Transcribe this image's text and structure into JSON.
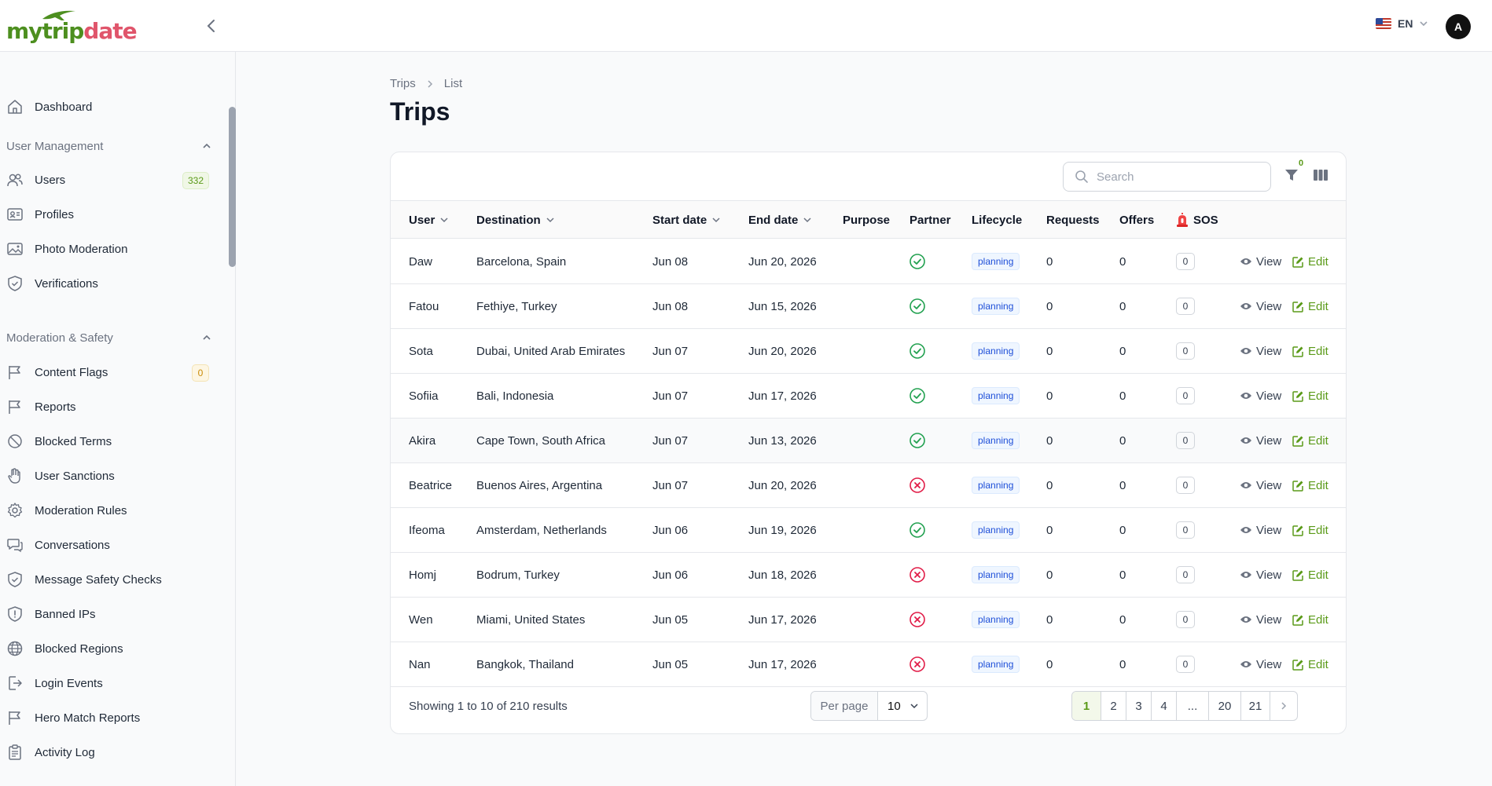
{
  "brand": {
    "part1": "my",
    "part2": "trip",
    "part3": "date"
  },
  "header": {
    "lang": "EN",
    "avatar_initial": "A"
  },
  "sidebar": {
    "dashboard": "Dashboard",
    "sections": [
      {
        "title": "User Management",
        "items": [
          {
            "label": "Users",
            "badge": "332",
            "icon": "users-icon"
          },
          {
            "label": "Profiles",
            "icon": "id-card-icon"
          },
          {
            "label": "Photo Moderation",
            "icon": "image-icon"
          },
          {
            "label": "Verifications",
            "icon": "shield-check-icon"
          }
        ]
      },
      {
        "title": "Moderation & Safety",
        "items": [
          {
            "label": "Content Flags",
            "badge": "0",
            "icon": "flag-icon"
          },
          {
            "label": "Reports",
            "icon": "flag-icon"
          },
          {
            "label": "Blocked Terms",
            "icon": "ban-icon"
          },
          {
            "label": "User Sanctions",
            "icon": "hand-icon"
          },
          {
            "label": "Moderation Rules",
            "icon": "gear-icon"
          },
          {
            "label": "Conversations",
            "icon": "chat-icon"
          },
          {
            "label": "Message Safety Checks",
            "icon": "shield-check-icon"
          },
          {
            "label": "Banned IPs",
            "icon": "shield-alert-icon"
          },
          {
            "label": "Blocked Regions",
            "icon": "globe-icon"
          },
          {
            "label": "Login Events",
            "icon": "login-icon"
          },
          {
            "label": "Hero Match Reports",
            "icon": "flag-icon"
          },
          {
            "label": "Activity Log",
            "icon": "clipboard-icon"
          }
        ]
      }
    ]
  },
  "breadcrumb": {
    "root": "Trips",
    "current": "List"
  },
  "page_title": "Trips",
  "toolbar": {
    "search_placeholder": "Search",
    "filter_count": "0"
  },
  "table": {
    "columns": {
      "user": "User",
      "destination": "Destination",
      "start": "Start date",
      "end": "End date",
      "purpose": "Purpose",
      "partner": "Partner",
      "lifecycle": "Lifecycle",
      "requests": "Requests",
      "offers": "Offers",
      "sos": "SOS"
    },
    "view_label": "View",
    "edit_label": "Edit",
    "rows": [
      {
        "user": "Daw",
        "destination": "Barcelona, Spain",
        "start": "Jun 08",
        "end": "Jun 20, 2026",
        "purpose": "",
        "partner": true,
        "lifecycle": "planning",
        "requests": "0",
        "offers": "0",
        "sos": "0"
      },
      {
        "user": "Fatou",
        "destination": "Fethiye, Turkey",
        "start": "Jun 08",
        "end": "Jun 15, 2026",
        "purpose": "",
        "partner": true,
        "lifecycle": "planning",
        "requests": "0",
        "offers": "0",
        "sos": "0"
      },
      {
        "user": "Sota",
        "destination": "Dubai, United Arab Emirates",
        "start": "Jun 07",
        "end": "Jun 20, 2026",
        "purpose": "",
        "partner": true,
        "lifecycle": "planning",
        "requests": "0",
        "offers": "0",
        "sos": "0"
      },
      {
        "user": "Sofiia",
        "destination": "Bali, Indonesia",
        "start": "Jun 07",
        "end": "Jun 17, 2026",
        "purpose": "",
        "partner": true,
        "lifecycle": "planning",
        "requests": "0",
        "offers": "0",
        "sos": "0"
      },
      {
        "user": "Akira",
        "destination": "Cape Town, South Africa",
        "start": "Jun 07",
        "end": "Jun 13, 2026",
        "purpose": "",
        "partner": true,
        "lifecycle": "planning",
        "requests": "0",
        "offers": "0",
        "sos": "0"
      },
      {
        "user": "Beatrice",
        "destination": "Buenos Aires, Argentina",
        "start": "Jun 07",
        "end": "Jun 20, 2026",
        "purpose": "",
        "partner": false,
        "lifecycle": "planning",
        "requests": "0",
        "offers": "0",
        "sos": "0"
      },
      {
        "user": "Ifeoma",
        "destination": "Amsterdam, Netherlands",
        "start": "Jun 06",
        "end": "Jun 19, 2026",
        "purpose": "",
        "partner": true,
        "lifecycle": "planning",
        "requests": "0",
        "offers": "0",
        "sos": "0"
      },
      {
        "user": "Homj",
        "destination": "Bodrum, Turkey",
        "start": "Jun 06",
        "end": "Jun 18, 2026",
        "purpose": "",
        "partner": false,
        "lifecycle": "planning",
        "requests": "0",
        "offers": "0",
        "sos": "0"
      },
      {
        "user": "Wen",
        "destination": "Miami, United States",
        "start": "Jun 05",
        "end": "Jun 17, 2026",
        "purpose": "",
        "partner": false,
        "lifecycle": "planning",
        "requests": "0",
        "offers": "0",
        "sos": "0"
      },
      {
        "user": "Nan",
        "destination": "Bangkok, Thailand",
        "start": "Jun 05",
        "end": "Jun 17, 2026",
        "purpose": "",
        "partner": false,
        "lifecycle": "planning",
        "requests": "0",
        "offers": "0",
        "sos": "0"
      }
    ]
  },
  "footer": {
    "showing": "Showing 1 to 10 of 210 results",
    "per_page_label": "Per page",
    "per_page_value": "10",
    "pages": [
      "1",
      "2",
      "3",
      "4",
      "...",
      "20",
      "21"
    ],
    "active_page": "1"
  },
  "colors": {
    "brand_green": "#5a9a18",
    "brand_pink": "#e0556b",
    "ok": "#22a150",
    "bad": "#e11d48"
  }
}
